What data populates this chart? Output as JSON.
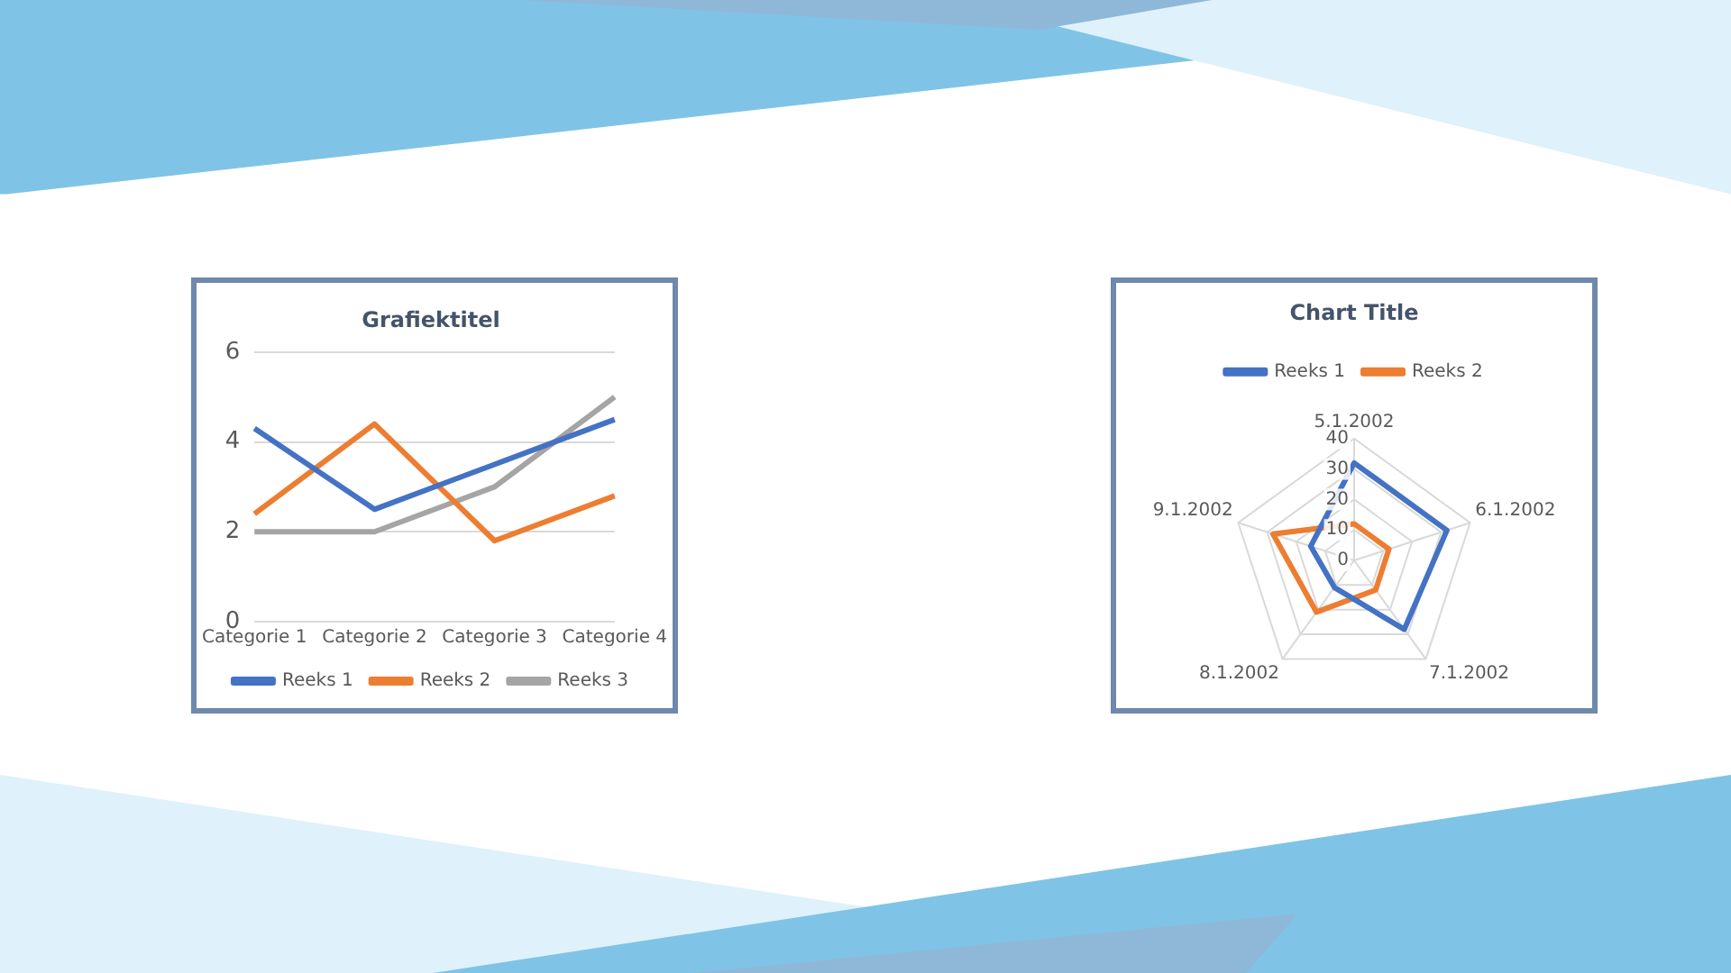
{
  "chart_data": [
    {
      "type": "line",
      "title": "Grafiektitel",
      "categories": [
        "Categorie 1",
        "Categorie 2",
        "Categorie 3",
        "Categorie 4"
      ],
      "series": [
        {
          "name": "Reeks 1",
          "color": "#4472c4",
          "values": [
            4.3,
            2.5,
            3.5,
            4.5
          ]
        },
        {
          "name": "Reeks 2",
          "color": "#ed7d31",
          "values": [
            2.4,
            4.4,
            1.8,
            2.8
          ]
        },
        {
          "name": "Reeks 3",
          "color": "#a5a5a5",
          "values": [
            2,
            2,
            3,
            5
          ]
        }
      ],
      "ylim": [
        0,
        6
      ],
      "yticks": [
        0,
        2,
        4,
        6
      ],
      "grid": "y",
      "legend": "bottom",
      "marker": "none"
    },
    {
      "type": "radar",
      "title": "Chart Title",
      "categories": [
        "5.1.2002",
        "6.1.2002",
        "7.1.2002",
        "8.1.2002",
        "9.1.2002"
      ],
      "series": [
        {
          "name": "Reeks 1",
          "color": "#4472c4",
          "values": [
            32,
            32,
            28,
            11,
            15
          ]
        },
        {
          "name": "Reeks 2",
          "color": "#ed7d31",
          "values": [
            12,
            12,
            12,
            21,
            28
          ]
        }
      ],
      "ylim": [
        0,
        40
      ],
      "yticks": [
        0,
        10,
        20,
        30,
        40
      ],
      "grid": true,
      "legend": "top",
      "marker": "none"
    }
  ]
}
